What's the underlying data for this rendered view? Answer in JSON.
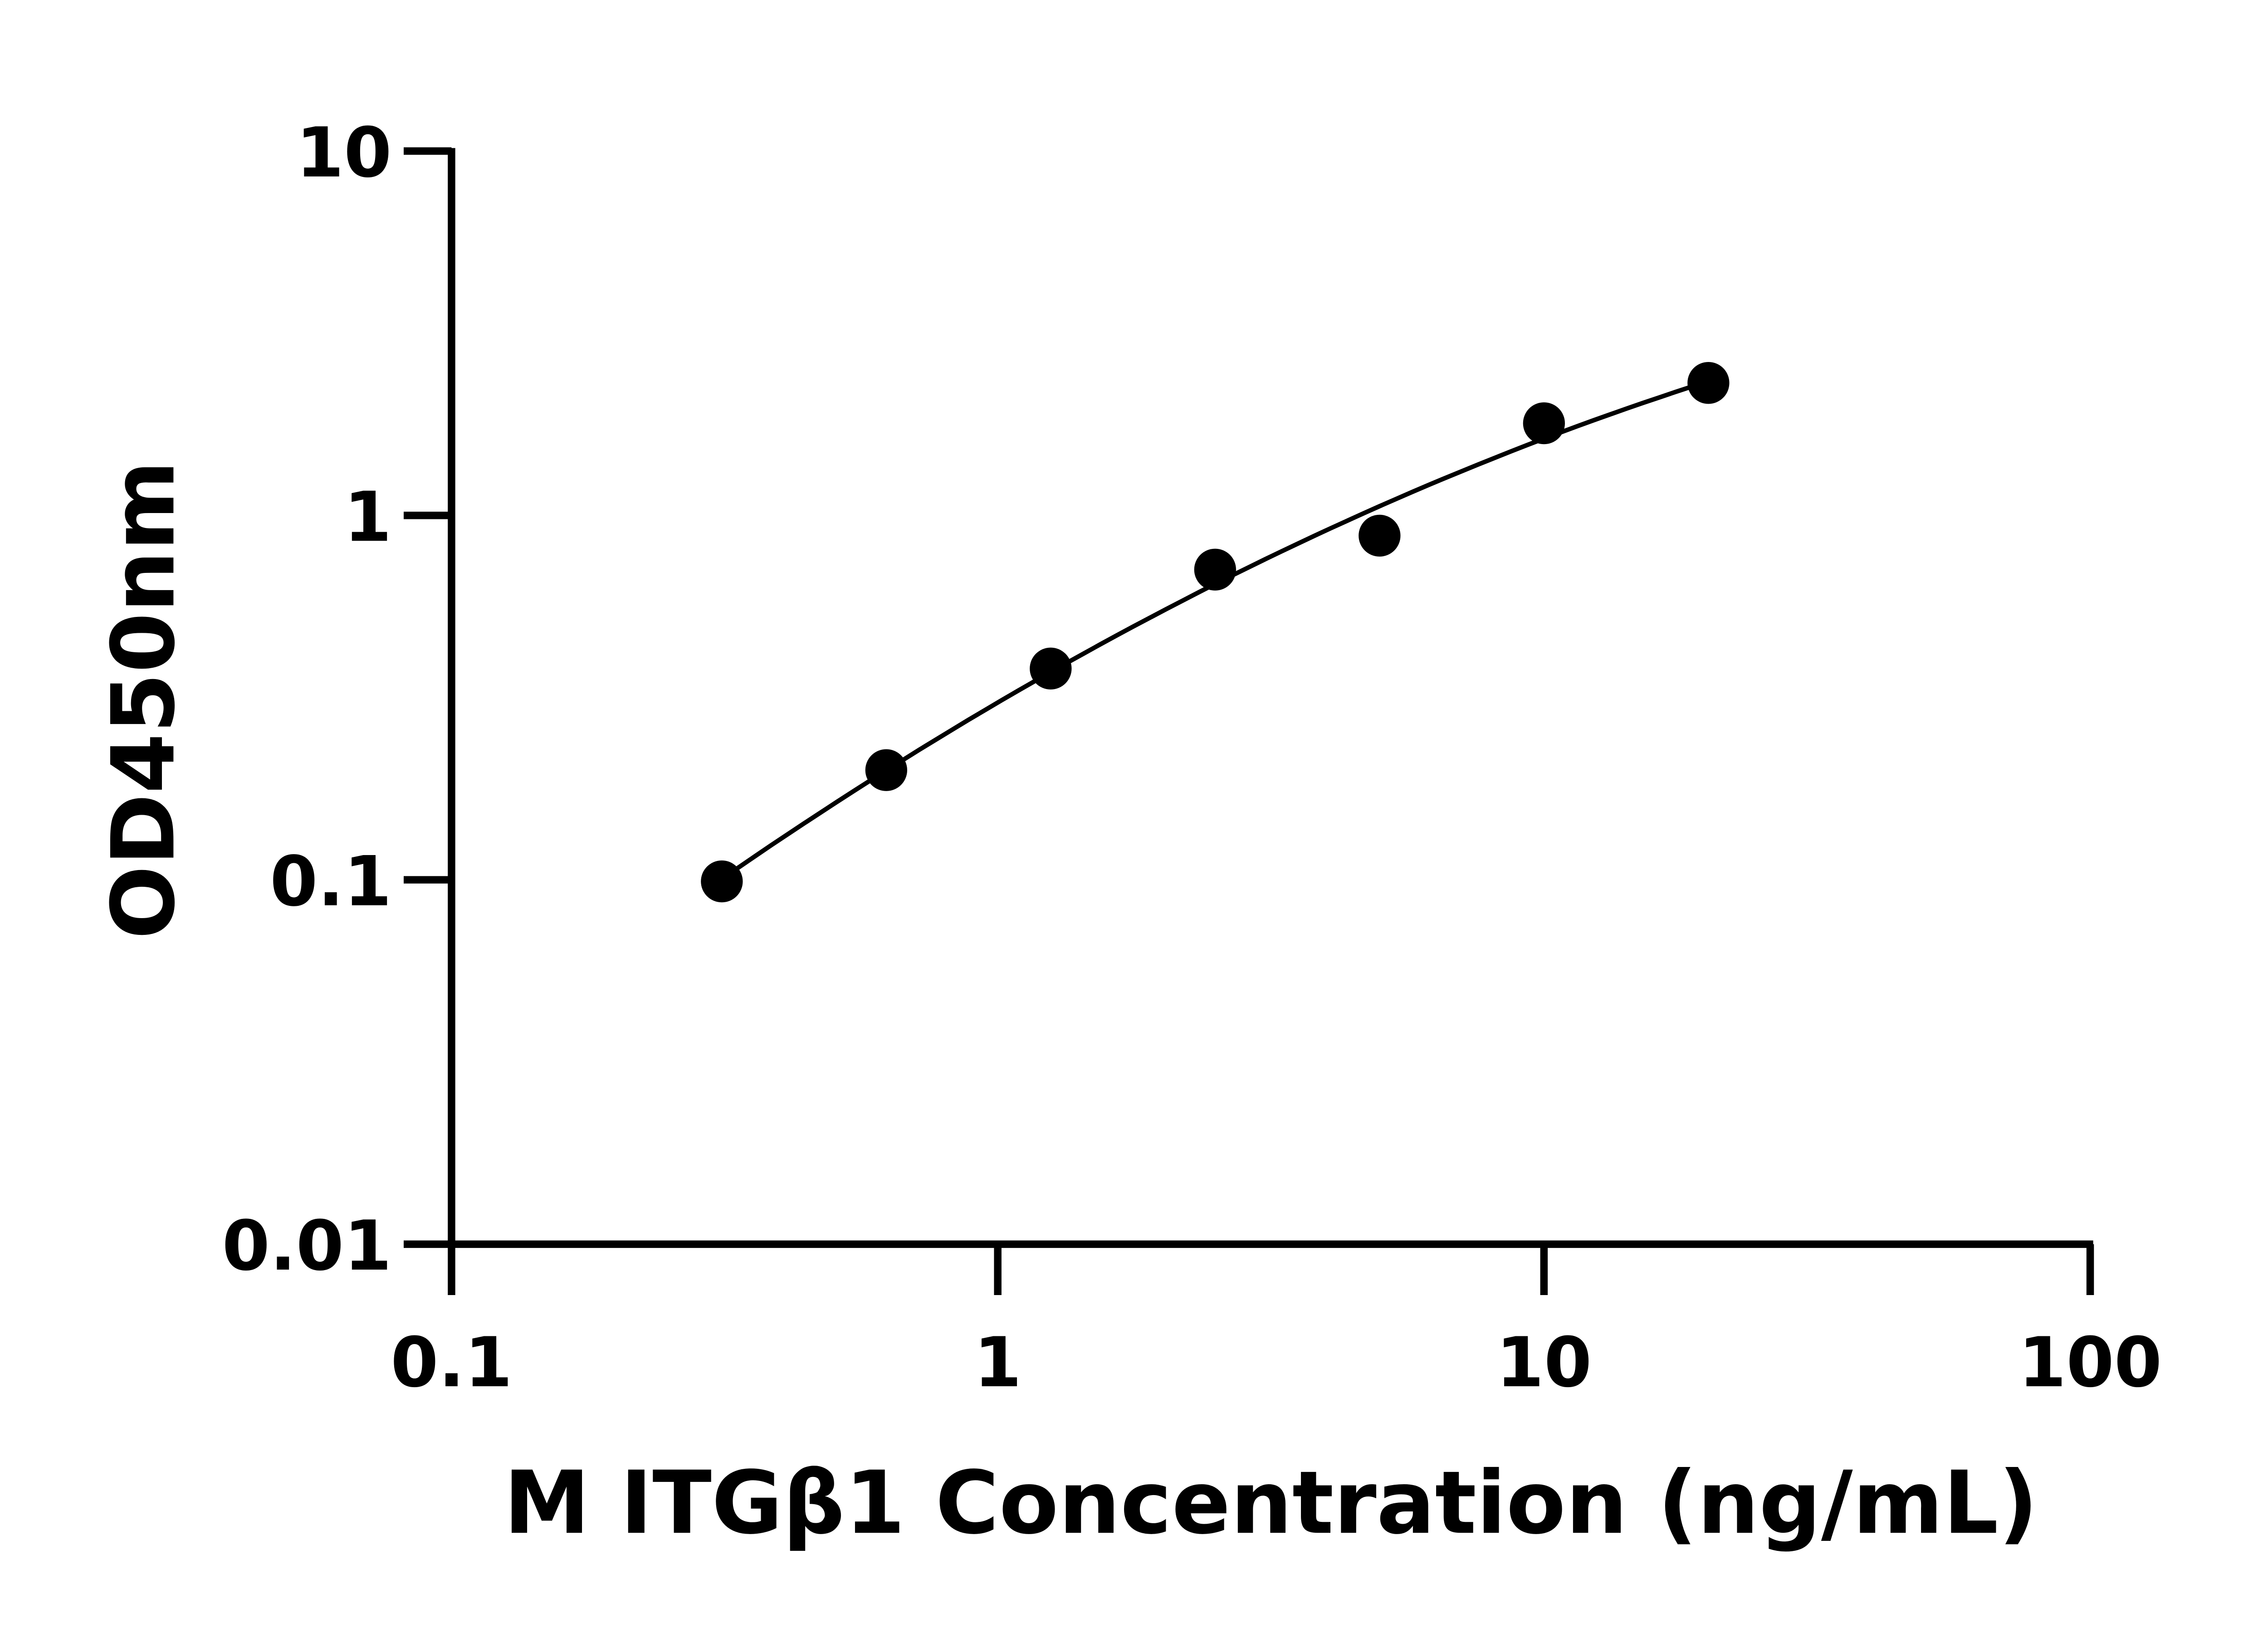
{
  "chart_data": {
    "type": "scatter",
    "title": "",
    "xlabel": "M ITGβ1 Concentration (ng/mL)",
    "ylabel": "OD450nm",
    "x_scale": "log",
    "y_scale": "log",
    "xlim": [
      0.1,
      100
    ],
    "ylim": [
      0.01,
      10
    ],
    "x_ticks": [
      "0.1",
      "1",
      "10",
      "100"
    ],
    "y_ticks": [
      "0.01",
      "0.1",
      "1",
      "10"
    ],
    "grid": false,
    "legend": "none",
    "series": [
      {
        "x": [
          0.3125,
          0.625,
          1.25,
          2.5,
          5,
          10,
          20
        ],
        "y": [
          0.099,
          0.2,
          0.38,
          0.71,
          0.88,
          1.79,
          2.31
        ],
        "marker": "filled-circle",
        "fit_curve": true
      }
    ],
    "colors": {
      "marks": "#000000",
      "background": "#ffffff"
    }
  }
}
